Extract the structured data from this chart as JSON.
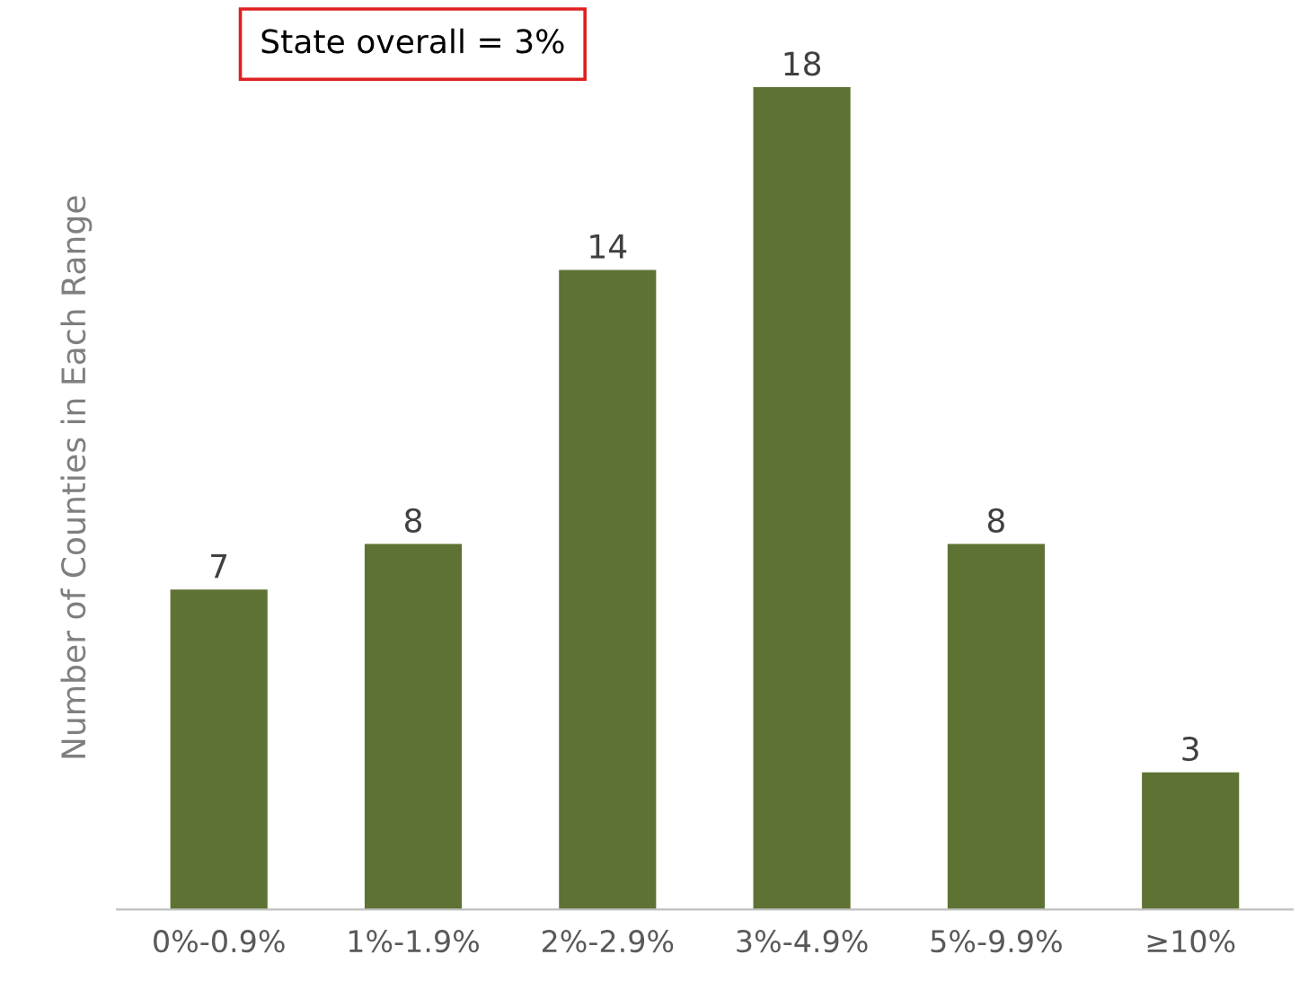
{
  "chart_data": {
    "type": "bar",
    "ylabel": "Number of Counties in Each Range",
    "categories": [
      "0%-0.9%",
      "1%-1.9%",
      "2%-2.9%",
      "3%-4.9%",
      "5%-9.9%",
      "≥10%"
    ],
    "values": [
      7,
      8,
      14,
      18,
      8,
      3
    ],
    "color": "#5e7233",
    "data_labels": true,
    "tick_labels": "x",
    "grid": false,
    "legend": false,
    "annotations": [
      "State overall = 3%"
    ]
  }
}
